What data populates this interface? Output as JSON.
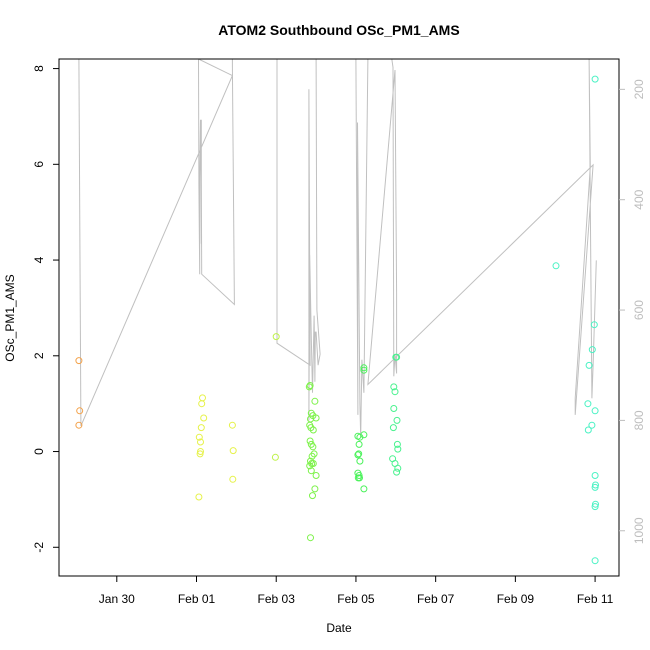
{
  "chart_data": {
    "type": "scatter",
    "title": "ATOM2 Southbound OSc_PM1_AMS",
    "xlabel": "Date",
    "ylabel": "OSc_PM1_AMS",
    "xlim": [
      -1.45,
      12.6
    ],
    "ylim": [
      -2.6,
      8.2
    ],
    "y2lim": [
      1082,
      145
    ],
    "x_ticks": [
      {
        "value": 0,
        "label": "Jan 30"
      },
      {
        "value": 2,
        "label": "Feb 01"
      },
      {
        "value": 4,
        "label": "Feb 03"
      },
      {
        "value": 6,
        "label": "Feb 05"
      },
      {
        "value": 8,
        "label": "Feb 07"
      },
      {
        "value": 10,
        "label": "Feb 09"
      },
      {
        "value": 12,
        "label": "Feb 11"
      }
    ],
    "y_ticks": [
      -2,
      0,
      2,
      4,
      6,
      8
    ],
    "y2_ticks": [
      200,
      400,
      600,
      800,
      1000
    ],
    "grid": false,
    "points": [
      {
        "x": -0.95,
        "y": 1.9,
        "color": "#f4a24a"
      },
      {
        "x": -0.93,
        "y": 0.85,
        "color": "#f4a24a"
      },
      {
        "x": -0.95,
        "y": 0.55,
        "color": "#f4a24a"
      },
      {
        "x": 2.15,
        "y": 1.12,
        "color": "#e6f24a"
      },
      {
        "x": 2.13,
        "y": 1.0,
        "color": "#e6f24a"
      },
      {
        "x": 2.18,
        "y": 0.7,
        "color": "#e6f24a"
      },
      {
        "x": 2.12,
        "y": 0.5,
        "color": "#e6f24a"
      },
      {
        "x": 2.07,
        "y": 0.3,
        "color": "#e6f24a"
      },
      {
        "x": 2.1,
        "y": 0.2,
        "color": "#e6f24a"
      },
      {
        "x": 2.1,
        "y": 0.0,
        "color": "#e6f24a"
      },
      {
        "x": 2.09,
        "y": -0.05,
        "color": "#e6f24a"
      },
      {
        "x": 2.06,
        "y": -0.95,
        "color": "#e6f24a"
      },
      {
        "x": 2.9,
        "y": 0.55,
        "color": "#e6f24a"
      },
      {
        "x": 2.92,
        "y": 0.02,
        "color": "#e6f24a"
      },
      {
        "x": 2.91,
        "y": -0.58,
        "color": "#e6f24a"
      },
      {
        "x": 4.0,
        "y": 2.4,
        "color": "#bff24a"
      },
      {
        "x": 3.98,
        "y": -0.12,
        "color": "#bff24a"
      },
      {
        "x": 4.83,
        "y": 1.35,
        "color": "#7df24a"
      },
      {
        "x": 4.85,
        "y": 1.38,
        "color": "#7df24a"
      },
      {
        "x": 4.97,
        "y": 1.05,
        "color": "#7df24a"
      },
      {
        "x": 4.88,
        "y": 0.8,
        "color": "#7df24a"
      },
      {
        "x": 4.92,
        "y": 0.75,
        "color": "#7df24a"
      },
      {
        "x": 4.86,
        "y": 0.68,
        "color": "#7df24a"
      },
      {
        "x": 5.0,
        "y": 0.7,
        "color": "#7df24a"
      },
      {
        "x": 4.84,
        "y": 0.55,
        "color": "#7df24a"
      },
      {
        "x": 4.87,
        "y": 0.5,
        "color": "#7df24a"
      },
      {
        "x": 4.93,
        "y": 0.45,
        "color": "#7df24a"
      },
      {
        "x": 4.85,
        "y": 0.22,
        "color": "#7df24a"
      },
      {
        "x": 4.88,
        "y": 0.15,
        "color": "#7df24a"
      },
      {
        "x": 4.92,
        "y": 0.1,
        "color": "#7df24a"
      },
      {
        "x": 4.95,
        "y": -0.05,
        "color": "#7df24a"
      },
      {
        "x": 4.9,
        "y": -0.1,
        "color": "#7df24a"
      },
      {
        "x": 4.86,
        "y": -0.2,
        "color": "#7df24a"
      },
      {
        "x": 4.89,
        "y": -0.25,
        "color": "#7df24a"
      },
      {
        "x": 4.84,
        "y": -0.3,
        "color": "#7df24a"
      },
      {
        "x": 4.93,
        "y": -0.25,
        "color": "#7df24a"
      },
      {
        "x": 4.88,
        "y": -0.4,
        "color": "#7df24a"
      },
      {
        "x": 5.0,
        "y": -0.5,
        "color": "#7df24a"
      },
      {
        "x": 4.97,
        "y": -0.78,
        "color": "#7df24a"
      },
      {
        "x": 4.91,
        "y": -0.92,
        "color": "#7df24a"
      },
      {
        "x": 4.86,
        "y": -1.8,
        "color": "#7df24a"
      },
      {
        "x": 6.2,
        "y": 1.75,
        "color": "#4af25a"
      },
      {
        "x": 6.2,
        "y": 1.7,
        "color": "#4af25a"
      },
      {
        "x": 6.05,
        "y": 0.32,
        "color": "#4af25a"
      },
      {
        "x": 6.1,
        "y": 0.3,
        "color": "#4af25a"
      },
      {
        "x": 6.2,
        "y": 0.35,
        "color": "#4af25a"
      },
      {
        "x": 6.08,
        "y": 0.15,
        "color": "#4af25a"
      },
      {
        "x": 6.07,
        "y": -0.05,
        "color": "#4af25a"
      },
      {
        "x": 6.05,
        "y": -0.07,
        "color": "#4af25a"
      },
      {
        "x": 6.1,
        "y": -0.2,
        "color": "#4af25a"
      },
      {
        "x": 6.05,
        "y": -0.45,
        "color": "#4af25a"
      },
      {
        "x": 6.08,
        "y": -0.5,
        "color": "#4af25a"
      },
      {
        "x": 6.06,
        "y": -0.55,
        "color": "#4af25a"
      },
      {
        "x": 6.09,
        "y": -0.55,
        "color": "#4af25a"
      },
      {
        "x": 6.2,
        "y": -0.78,
        "color": "#4af25a"
      },
      {
        "x": 7.0,
        "y": 1.97,
        "color": "#4af28f"
      },
      {
        "x": 7.02,
        "y": 1.97,
        "color": "#4af28f"
      },
      {
        "x": 6.95,
        "y": 1.35,
        "color": "#4af28f"
      },
      {
        "x": 6.98,
        "y": 1.25,
        "color": "#4af28f"
      },
      {
        "x": 6.95,
        "y": 0.9,
        "color": "#4af28f"
      },
      {
        "x": 7.03,
        "y": 0.65,
        "color": "#4af28f"
      },
      {
        "x": 6.94,
        "y": 0.5,
        "color": "#4af28f"
      },
      {
        "x": 7.04,
        "y": 0.15,
        "color": "#4af28f"
      },
      {
        "x": 7.05,
        "y": 0.05,
        "color": "#4af28f"
      },
      {
        "x": 6.92,
        "y": -0.15,
        "color": "#4af28f"
      },
      {
        "x": 6.98,
        "y": -0.25,
        "color": "#4af28f"
      },
      {
        "x": 7.05,
        "y": -0.35,
        "color": "#4af28f"
      },
      {
        "x": 7.02,
        "y": -0.43,
        "color": "#4af28f"
      },
      {
        "x": 11.02,
        "y": 3.88,
        "color": "#4af2c4"
      },
      {
        "x": 12.0,
        "y": 7.78,
        "color": "#4af2c4"
      },
      {
        "x": 11.98,
        "y": 2.65,
        "color": "#4af2c4"
      },
      {
        "x": 11.93,
        "y": 2.13,
        "color": "#4af2c4"
      },
      {
        "x": 11.85,
        "y": 1.8,
        "color": "#4af2c4"
      },
      {
        "x": 11.82,
        "y": 1.0,
        "color": "#4af2c4"
      },
      {
        "x": 12.0,
        "y": 0.85,
        "color": "#4af2c4"
      },
      {
        "x": 11.92,
        "y": 0.55,
        "color": "#4af2c4"
      },
      {
        "x": 11.83,
        "y": 0.45,
        "color": "#4af2c4"
      },
      {
        "x": 12.0,
        "y": -0.5,
        "color": "#4af2c4"
      },
      {
        "x": 12.01,
        "y": -0.7,
        "color": "#4af2c4"
      },
      {
        "x": 12.0,
        "y": -0.75,
        "color": "#4af2c4"
      },
      {
        "x": 12.01,
        "y": -1.1,
        "color": "#4af2c4"
      },
      {
        "x": 12.0,
        "y": -1.15,
        "color": "#4af2c4"
      },
      {
        "x": 12.0,
        "y": -2.28,
        "color": "#4af2c4"
      }
    ],
    "altitude_track": {
      "axis": "y2",
      "color": "#c0c0c0",
      "values": [
        [
          -0.95,
          145
        ],
        [
          -0.9,
          810
        ],
        [
          2.9,
          175
        ],
        [
          2.05,
          145
        ],
        [
          2.06,
          375
        ],
        [
          2.08,
          535
        ],
        [
          2.08,
          360
        ],
        [
          2.1,
          255
        ],
        [
          2.12,
          480
        ],
        [
          2.12,
          255
        ],
        [
          2.12,
          360
        ],
        [
          2.13,
          535
        ],
        [
          2.95,
          590
        ],
        [
          2.9,
          160
        ],
        [
          2.9,
          145
        ],
        [
          3.1,
          145
        ],
        [
          4.02,
          145
        ],
        [
          4.02,
          660
        ],
        [
          4.85,
          700
        ],
        [
          4.82,
          200
        ],
        [
          4.82,
          800
        ],
        [
          4.84,
          500
        ],
        [
          4.88,
          650
        ],
        [
          4.91,
          750
        ],
        [
          4.95,
          610
        ],
        [
          4.97,
          730
        ],
        [
          4.98,
          640
        ],
        [
          5.0,
          640
        ],
        [
          5.05,
          700
        ],
        [
          5.1,
          680
        ],
        [
          5.02,
          600
        ],
        [
          5.0,
          145
        ],
        [
          6.0,
          145
        ],
        [
          6.05,
          790
        ],
        [
          6.04,
          260
        ],
        [
          6.1,
          770
        ],
        [
          6.12,
          830
        ],
        [
          6.15,
          690
        ],
        [
          6.2,
          750
        ],
        [
          6.3,
          145
        ],
        [
          6.9,
          145
        ],
        [
          6.93,
          160
        ],
        [
          6.95,
          720
        ],
        [
          6.98,
          680
        ],
        [
          7.02,
          715
        ],
        [
          7.02,
          570
        ],
        [
          6.98,
          165
        ],
        [
          6.3,
          735
        ],
        [
          11.95,
          337
        ],
        [
          11.5,
          790
        ],
        [
          11.5,
          760
        ],
        [
          11.88,
          340
        ],
        [
          11.85,
          145
        ],
        [
          11.92,
          760
        ],
        [
          11.95,
          700
        ],
        [
          12.03,
          510
        ]
      ]
    }
  }
}
